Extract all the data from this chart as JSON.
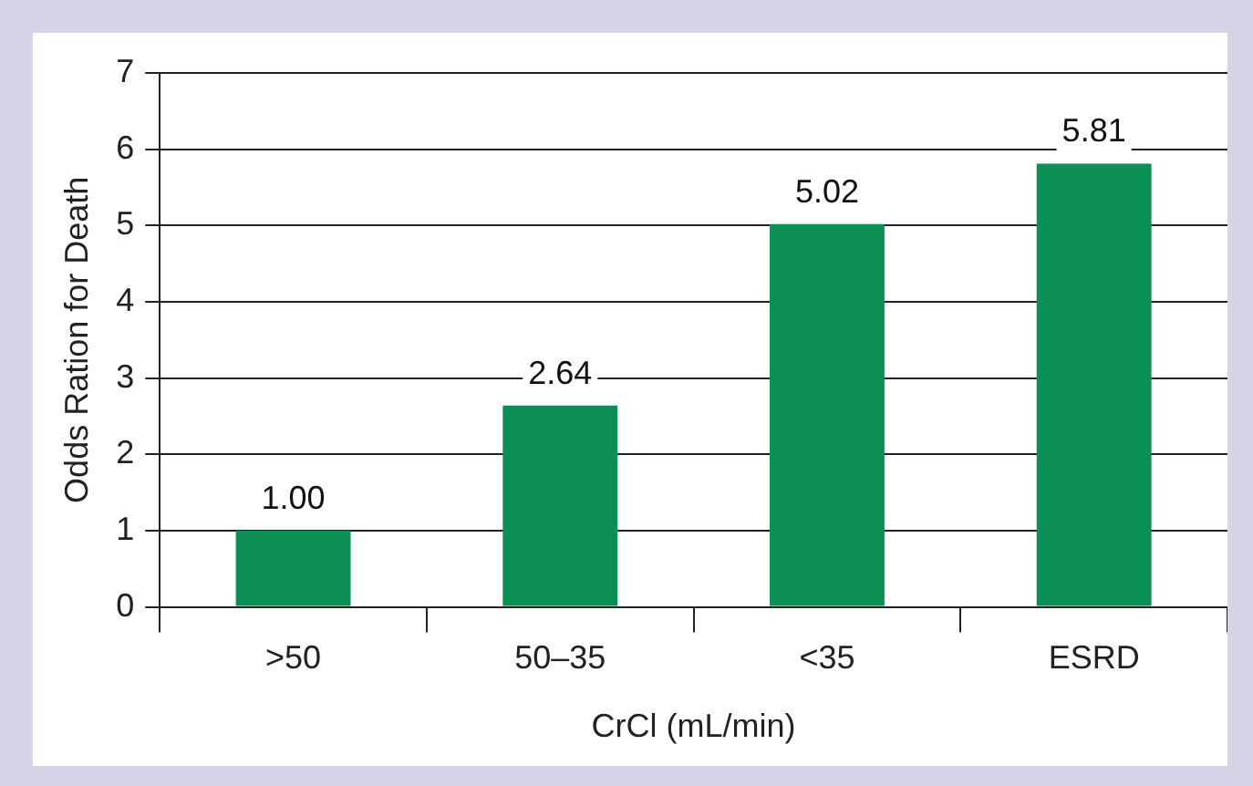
{
  "chart_data": {
    "type": "bar",
    "xlabel": "CrCl (mL/min)",
    "ylabel": "Odds Ration for Death",
    "categories": [
      ">50",
      "50–35",
      "<35",
      "ESRD"
    ],
    "values": [
      1.0,
      2.64,
      5.02,
      5.81
    ],
    "value_labels": [
      "1.00",
      "2.64",
      "5.02",
      "5.81"
    ],
    "color": "#0b8f55",
    "ylim": [
      0,
      7
    ],
    "yticks": [
      0,
      1,
      2,
      3,
      4,
      5,
      6,
      7
    ],
    "grid": "y",
    "legend": false
  }
}
